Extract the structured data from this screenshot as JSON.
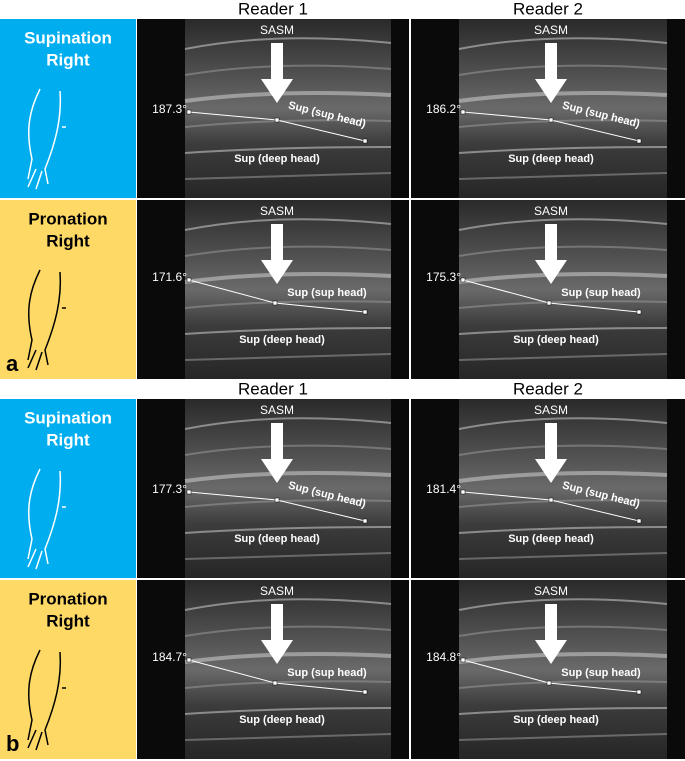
{
  "panels": [
    {
      "letter": "a",
      "headers": [
        "Reader 1",
        "Reader 2"
      ],
      "rows": [
        {
          "label": [
            "Supination",
            "Right"
          ],
          "cells": [
            {
              "angle": "187.3°",
              "arrow_label": "SASM",
              "upper_label": "Sup (sup head)",
              "lower_label": "Sup (deep head)"
            },
            {
              "angle": "186.2°",
              "arrow_label": "SASM",
              "upper_label": "Sup (sup head)",
              "lower_label": "Sup (deep head)"
            }
          ]
        },
        {
          "label": [
            "Pronation",
            "Right"
          ],
          "cells": [
            {
              "angle": "171.6°",
              "arrow_label": "SASM",
              "upper_label": "Sup (sup head)",
              "lower_label": "Sup (deep head)"
            },
            {
              "angle": "175.3°",
              "arrow_label": "SASM",
              "upper_label": "Sup (sup head)",
              "lower_label": "Sup (deep head)"
            }
          ]
        }
      ]
    },
    {
      "letter": "b",
      "headers": [
        "Reader 1",
        "Reader 2"
      ],
      "rows": [
        {
          "label": [
            "Supination",
            "Right"
          ],
          "cells": [
            {
              "angle": "177.3°",
              "arrow_label": "SASM",
              "upper_label": "Sup (sup head)",
              "lower_label": "Sup (deep head)"
            },
            {
              "angle": "181.4°",
              "arrow_label": "SASM",
              "upper_label": "Sup (sup head)",
              "lower_label": "Sup (deep head)"
            }
          ]
        },
        {
          "label": [
            "Pronation",
            "Right"
          ],
          "cells": [
            {
              "angle": "184.7°",
              "arrow_label": "SASM",
              "upper_label": "Sup (sup head)",
              "lower_label": "Sup (deep head)"
            },
            {
              "angle": "184.8°",
              "arrow_label": "SASM",
              "upper_label": "Sup (sup head)",
              "lower_label": "Sup (deep head)"
            }
          ]
        }
      ]
    }
  ]
}
